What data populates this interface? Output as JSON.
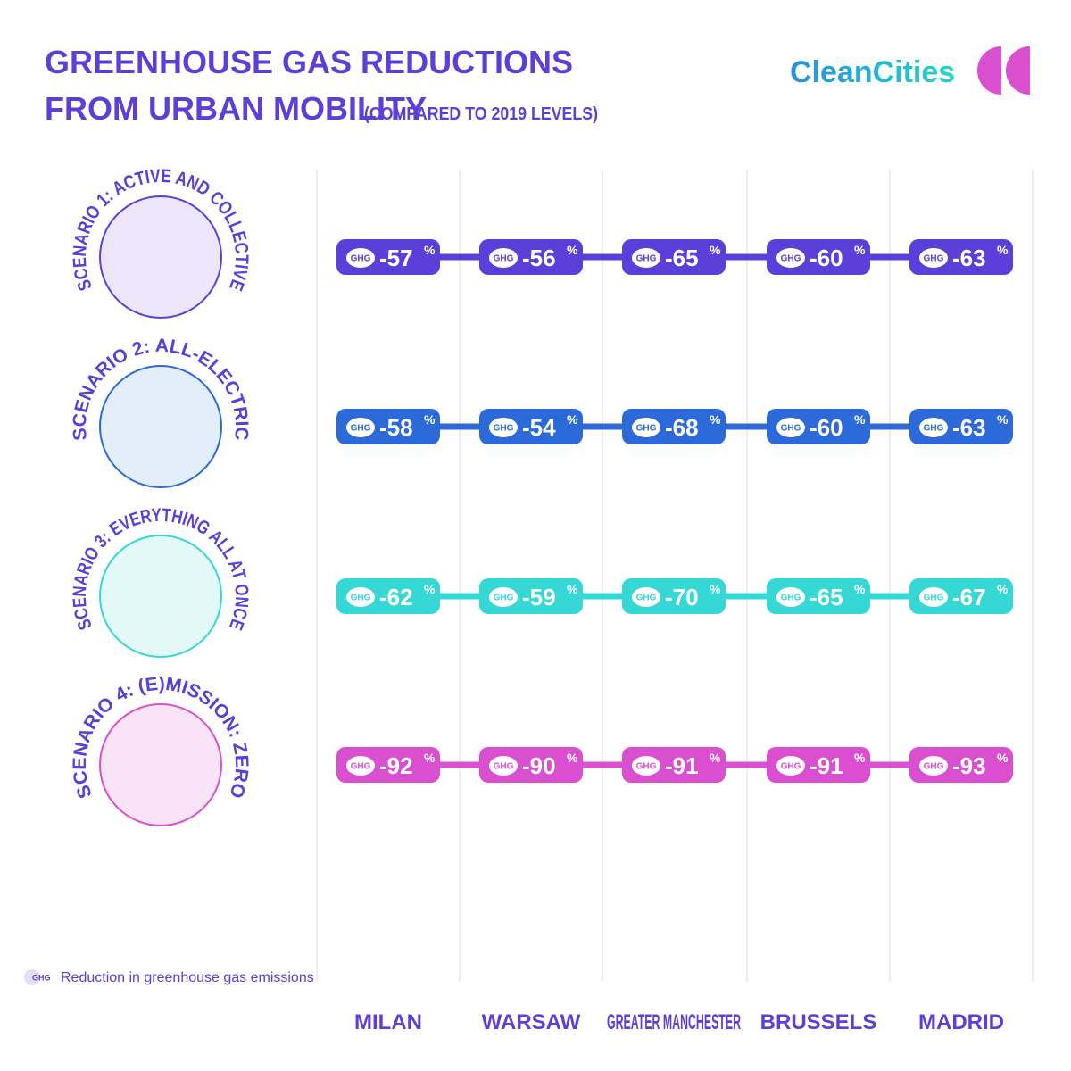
{
  "title_line1": "GREENHOUSE GAS REDUCTIONS",
  "title_line2": "FROM URBAN MOBILITY",
  "subtitle": "(COMPARED TO 2019 LEVELS)",
  "logo": "CleanCities",
  "badge_label": "GHG",
  "unit": "%",
  "scenarios": [
    {
      "name": "SCENARIO 1: ACTIVE AND COLLECTIVE",
      "color": "#5a3fd8",
      "light": "#ebe6fa",
      "values": [
        -57,
        -56,
        -65,
        -60,
        -63
      ]
    },
    {
      "name": "SCENARIO 2: ALL-ELECTRIC",
      "color": "#2b6ad8",
      "light": "#e4eefb",
      "values": [
        -58,
        -54,
        -68,
        -60,
        -63
      ]
    },
    {
      "name": "SCENARIO 3: EVERYTHING ALL AT ONCE",
      "color": "#35d8d4",
      "light": "#e2f9f8",
      "values": [
        -62,
        -59,
        -70,
        -65,
        -67
      ]
    },
    {
      "name": "SCENARIO 4: (E)MISSION: ZERO",
      "color": "#d94fd0",
      "light": "#f8e4f6",
      "values": [
        -92,
        -90,
        -91,
        -91,
        -93
      ]
    }
  ],
  "cities": [
    "MILAN",
    "WARSAW",
    "GREATER MANCHESTER",
    "BRUSSELS",
    "MADRID"
  ],
  "legend": "Reduction in greenhouse gas emissions"
}
